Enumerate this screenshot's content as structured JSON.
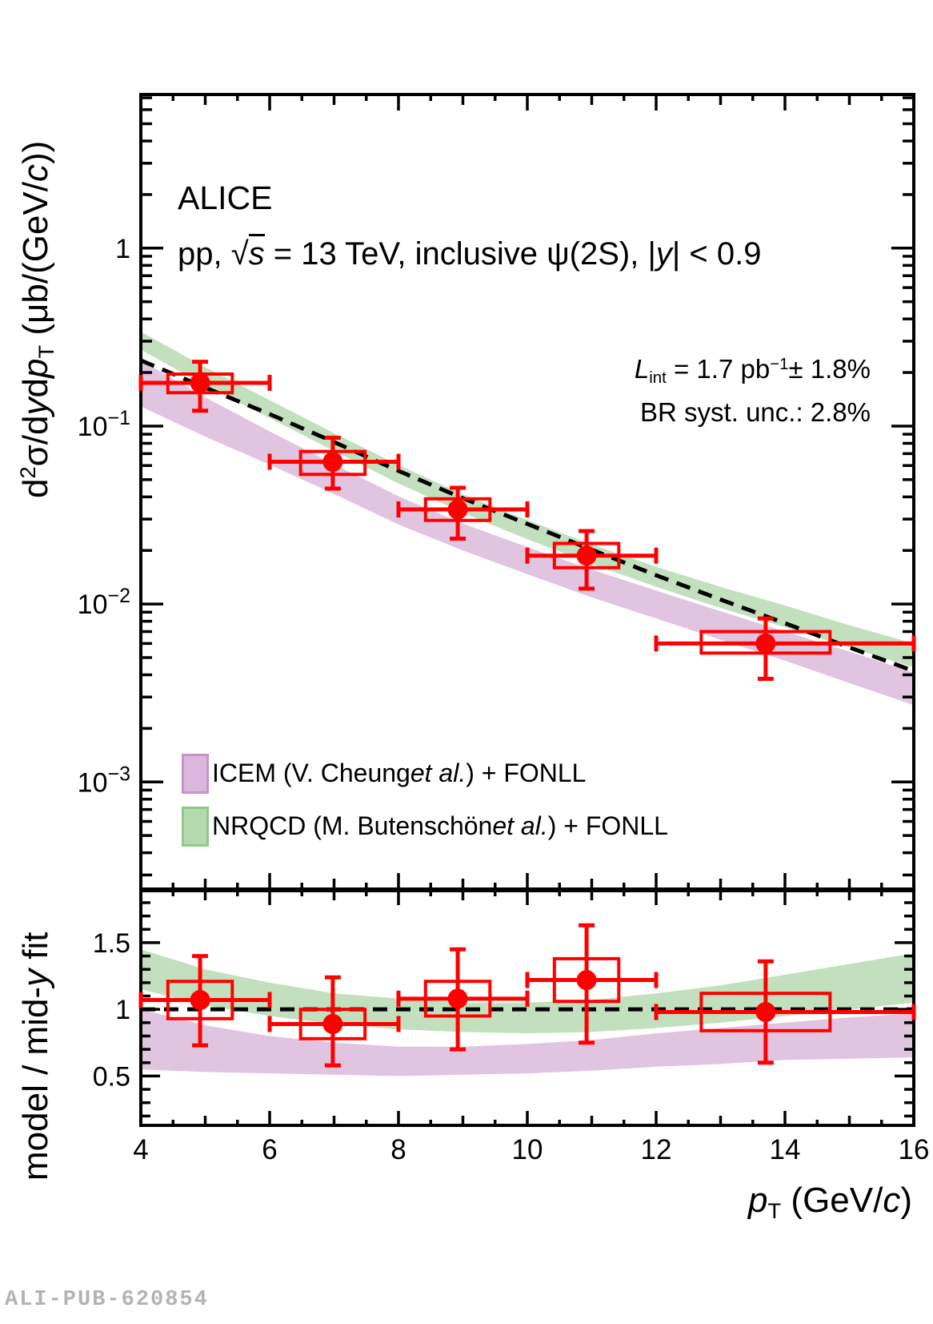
{
  "annotations": {
    "experiment": "ALICE",
    "subtitle": {
      "pre": "pp, ",
      "radical": "√",
      "s": "s",
      "mid": " = 13 TeV, inclusive ",
      "psi": "ψ(2S)",
      "mid2": ", |",
      "y": "y",
      "end": "| < 0.9"
    },
    "lumi": {
      "L": "L",
      "sub": "int",
      "mid": " = 1.7 pb",
      "sup": "−1",
      "end": "± 1.8%"
    },
    "br": "BR syst. unc.: 2.8%",
    "watermark": "ALI-PUB-620854"
  },
  "axis_titles": {
    "y_top": {
      "d": "d",
      "sup": "2",
      "mid1": "σ/d",
      "y": "y",
      "mid2": "d",
      "p": "p",
      "sub": "T",
      "mid3": " (μb/(GeV/",
      "c": "c",
      "end": "))"
    },
    "y_bottom": {
      "pre": "model / mid-",
      "y": "y",
      "end": " fit"
    },
    "x": {
      "p": "p",
      "sub": "T",
      "mid": " (GeV/",
      "c": "c",
      "end": ")"
    }
  },
  "legend": {
    "items": [
      {
        "key": "icem",
        "text_pre": "ICEM (V. Cheung",
        "etal": "et al.",
        "text_post": ") + FONLL",
        "fill": "#dcb6dc",
        "border": "#c993c9"
      },
      {
        "key": "nrqcd",
        "text_pre": "NRQCD (M. Butenschön",
        "etal": "et al.",
        "text_post": ") + FONLL",
        "fill": "#b4d9ae",
        "border": "#93c78f"
      }
    ]
  },
  "chart_data": [
    {
      "type": "scatter",
      "name": "cross-section-panel",
      "yscale": "log",
      "xlim": [
        4,
        16
      ],
      "ylim": [
        0.00025,
        7.3
      ],
      "x_ticks": [
        4,
        6,
        8,
        10,
        12,
        14,
        16
      ],
      "y_ticks": [
        {
          "value": 1,
          "text": "1"
        },
        {
          "value": 0.1,
          "text": "10",
          "sup": "−1"
        },
        {
          "value": 0.01,
          "text": "10",
          "sup": "−2"
        },
        {
          "value": 0.001,
          "text": "10",
          "sup": "−3"
        }
      ],
      "ylabel": "d2sigma/dy dpT (ub/(GeV/c))",
      "fit_line": {
        "style": "dashed",
        "pt": [
          4,
          5,
          6,
          7,
          8,
          9,
          10,
          11,
          12,
          13,
          14,
          15,
          16
        ],
        "value": [
          0.234,
          0.1645,
          0.1168,
          0.0813,
          0.056,
          0.0393,
          0.0282,
          0.0202,
          0.0145,
          0.0106,
          0.0078,
          0.0057,
          0.0042
        ]
      },
      "bands": [
        {
          "name": "ICEM (V. Cheung et al.) + FONLL",
          "color": "#dbbadb",
          "pt": [
            4,
            5,
            6,
            7,
            8,
            9,
            10,
            11,
            12,
            13,
            14,
            15,
            16
          ],
          "hi": [
            0.234,
            0.145,
            0.0934,
            0.061,
            0.0403,
            0.0283,
            0.0209,
            0.0156,
            0.0119,
            0.0091,
            0.007,
            0.0054,
            0.0041
          ],
          "lo": [
            0.129,
            0.0872,
            0.0607,
            0.0415,
            0.028,
            0.02,
            0.0147,
            0.0109,
            0.0083,
            0.0063,
            0.0048,
            0.0036,
            0.0027
          ]
        },
        {
          "name": "NRQCD (M. Butenschön et al.) + FONLL",
          "color": "#b7dab2",
          "pt": [
            4,
            5,
            6,
            7,
            8,
            9,
            10,
            11,
            12,
            13,
            14,
            15,
            16
          ],
          "hi": [
            0.339,
            0.214,
            0.14,
            0.0911,
            0.0605,
            0.0413,
            0.0296,
            0.0216,
            0.0162,
            0.0125,
            0.0098,
            0.0076,
            0.006
          ],
          "lo": [
            0.269,
            0.169,
            0.111,
            0.0724,
            0.0476,
            0.0326,
            0.0231,
            0.0168,
            0.0125,
            0.0095,
            0.0074,
            0.0057,
            0.0044
          ]
        }
      ],
      "points": {
        "color": "#ff0000",
        "pt": [
          4.92,
          6.98,
          8.92,
          10.92,
          13.7
        ],
        "bin_lo": [
          4,
          6,
          8,
          10,
          12
        ],
        "bin_hi": [
          6,
          8,
          10,
          12,
          16
        ],
        "value": [
          0.175,
          0.063,
          0.034,
          0.0187,
          0.006
        ],
        "stat_hi": [
          0.055,
          0.023,
          0.011,
          0.007,
          0.0023
        ],
        "stat_lo": [
          0.053,
          0.0185,
          0.0107,
          0.0065,
          0.0022
        ],
        "syst_hi": [
          0.021,
          0.009,
          0.005,
          0.0032,
          0.001
        ],
        "syst_lo": [
          0.021,
          0.0095,
          0.0045,
          0.0027,
          0.0007
        ],
        "box_halfwidth": [
          0.5,
          0.5,
          0.5,
          0.5,
          1.0
        ]
      }
    },
    {
      "type": "scatter",
      "name": "ratio-panel",
      "yscale": "linear",
      "xlim": [
        4,
        16
      ],
      "ylim": [
        0.13,
        1.89
      ],
      "x_ticks": [
        4,
        6,
        8,
        10,
        12,
        14,
        16
      ],
      "y_ticks": [
        0.5,
        1,
        1.5
      ],
      "ylabel": "model / mid-y fit",
      "xlabel": "pT (GeV/c)",
      "reference_line": 1,
      "bands": [
        {
          "name": "ICEM / fit",
          "color": "#dbbadb",
          "pt": [
            4,
            5,
            6,
            7,
            8,
            9,
            10,
            11,
            12,
            13,
            14,
            15,
            16
          ],
          "hi": [
            1.0,
            0.88,
            0.8,
            0.75,
            0.72,
            0.72,
            0.74,
            0.77,
            0.82,
            0.86,
            0.9,
            0.94,
            0.97
          ],
          "lo": [
            0.55,
            0.53,
            0.52,
            0.51,
            0.5,
            0.51,
            0.52,
            0.54,
            0.57,
            0.59,
            0.62,
            0.63,
            0.64
          ]
        },
        {
          "name": "NRQCD / fit",
          "color": "#b7dab2",
          "pt": [
            4,
            5,
            6,
            7,
            8,
            9,
            10,
            11,
            12,
            13,
            14,
            15,
            16
          ],
          "hi": [
            1.45,
            1.3,
            1.2,
            1.12,
            1.08,
            1.05,
            1.05,
            1.07,
            1.12,
            1.18,
            1.26,
            1.34,
            1.42
          ],
          "lo": [
            1.15,
            1.03,
            0.95,
            0.89,
            0.85,
            0.83,
            0.82,
            0.83,
            0.86,
            0.9,
            0.95,
            1.0,
            1.05
          ]
        }
      ],
      "points": {
        "color": "#ff0000",
        "pt": [
          4.92,
          6.98,
          8.92,
          10.92,
          13.7
        ],
        "bin_lo": [
          4,
          6,
          8,
          10,
          12
        ],
        "bin_hi": [
          6,
          8,
          10,
          12,
          16
        ],
        "value": [
          1.07,
          0.89,
          1.08,
          1.22,
          0.98
        ],
        "stat_hi": [
          0.33,
          0.35,
          0.37,
          0.41,
          0.38
        ],
        "stat_lo": [
          0.34,
          0.31,
          0.38,
          0.47,
          0.38
        ],
        "syst_hi": [
          0.14,
          0.11,
          0.13,
          0.16,
          0.14
        ],
        "syst_lo": [
          0.14,
          0.11,
          0.13,
          0.16,
          0.14
        ],
        "box_halfwidth": [
          0.5,
          0.5,
          0.5,
          0.5,
          1.0
        ]
      }
    }
  ]
}
